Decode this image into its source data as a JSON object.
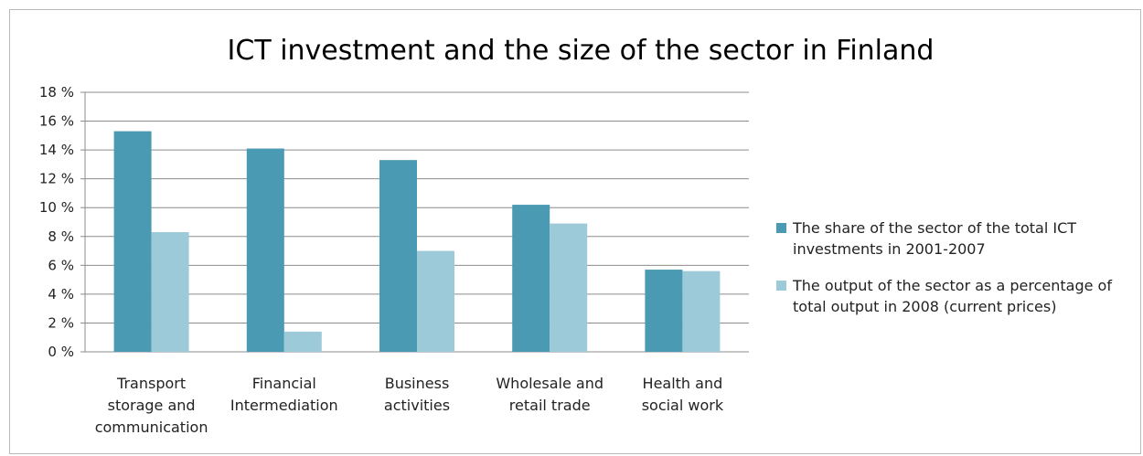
{
  "chart_data": {
    "type": "bar",
    "title": "ICT investment and the size of the sector in Finland",
    "categories": [
      [
        "Transport",
        "storage and",
        "communication"
      ],
      [
        "Financial",
        "Intermediation"
      ],
      [
        "Business",
        "activities"
      ],
      [
        "Wholesale and",
        "retail trade"
      ],
      [
        "Health and",
        "social work"
      ]
    ],
    "series": [
      {
        "name": "The share of the sector of the total ICT investments in 2001-2007",
        "legend_lines": [
          "The share of the sector of the total ICT",
          "investments in 2001-2007"
        ],
        "color": "#4a9ab3",
        "values": [
          15.3,
          14.1,
          13.3,
          10.2,
          5.7
        ]
      },
      {
        "name": "The output of the sector as a percentage of total output in 2008 (current prices)",
        "legend_lines": [
          "The output of the sector as a percentage of",
          "total output in 2008 (current prices)"
        ],
        "color": "#9ccad9",
        "values": [
          8.3,
          1.4,
          7.0,
          8.9,
          5.6
        ]
      }
    ],
    "ylim": [
      0,
      18
    ],
    "yticks": [
      0,
      2,
      4,
      6,
      8,
      10,
      12,
      14,
      16,
      18
    ],
    "ytick_labels": [
      "0 %",
      "2 %",
      "4 %",
      "6 %",
      "8 %",
      "10 %",
      "12 %",
      "14 %",
      "16 %",
      "18 %"
    ],
    "grid": true,
    "legend_position": "right"
  }
}
